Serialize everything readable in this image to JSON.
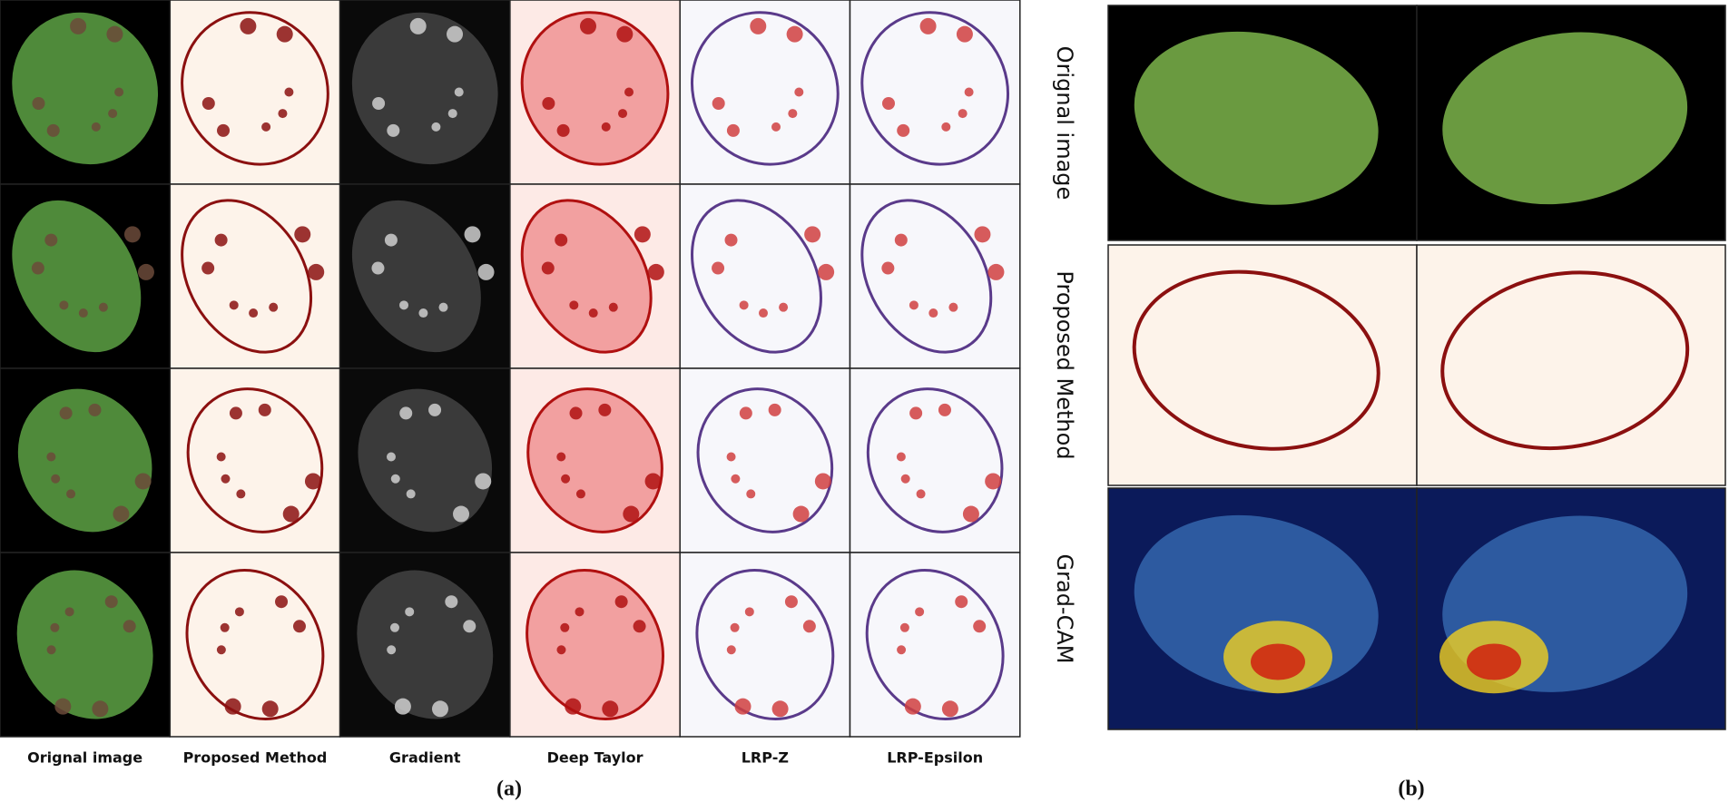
{
  "panel_a": {
    "columns": [
      "Orignal image",
      "Proposed Method",
      "Gradient",
      "Deep Taylor",
      "LRP-Z",
      "LRP-Epsilon"
    ],
    "caption": "(a)"
  },
  "panel_b": {
    "rows": [
      "Orignal image",
      "Proposed Method",
      "Grad-CAM"
    ],
    "caption": "(b)"
  }
}
